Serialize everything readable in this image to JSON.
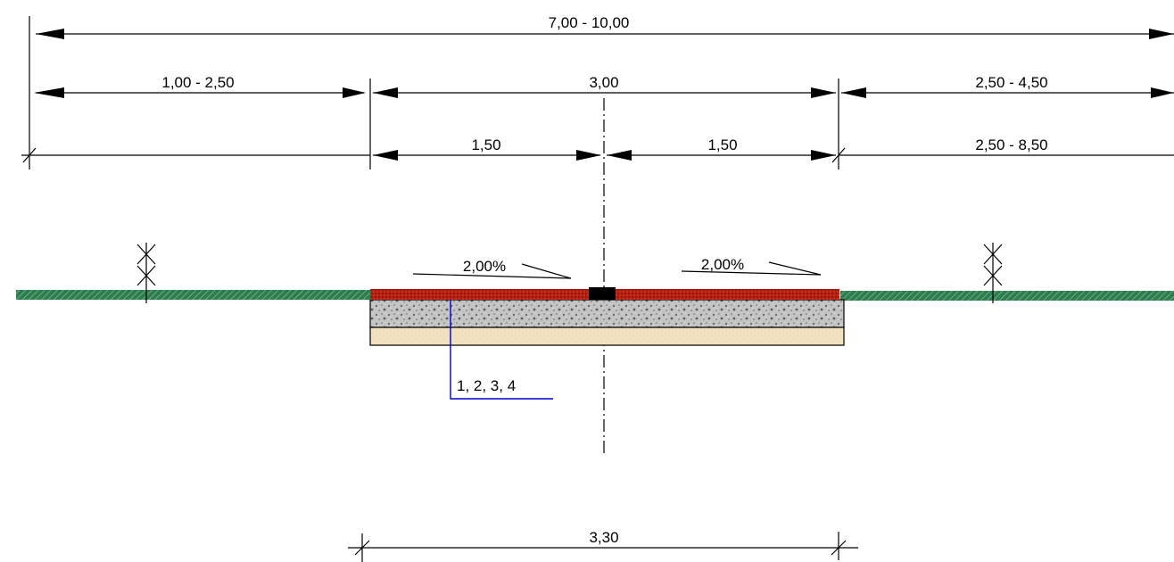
{
  "dimensions": {
    "total_width": "7,00 - 10,00",
    "left_verge": "1,00 - 2,50",
    "path_width": "3,00",
    "right_verge": "2,50 - 4,50",
    "half_left": "1,50",
    "half_right": "1,50",
    "right_extended": "2,50 - 8,50",
    "base_width": "3,30"
  },
  "slopes": {
    "left": "2,00%",
    "right": "2,00%"
  },
  "layer_callout": "1, 2, 3, 4",
  "colors": {
    "surface": "#b51f10",
    "ground": "#2e7d4f",
    "base_layer": "#bdbdbd",
    "sub_layer": "#f3e2c0",
    "callout_line": "#0000cc",
    "ink": "#000000"
  }
}
